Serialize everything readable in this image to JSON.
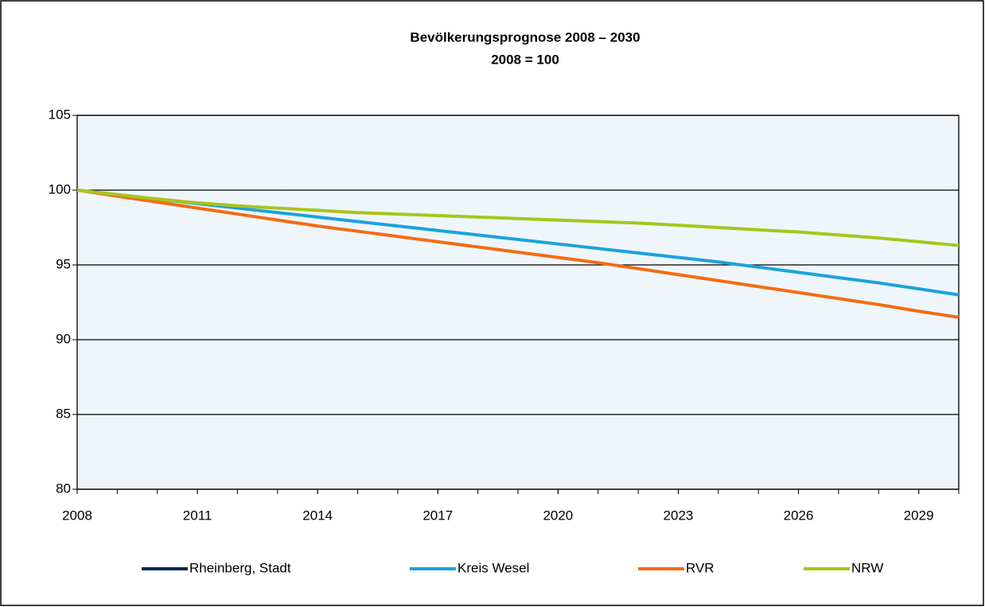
{
  "chart_data": {
    "type": "line",
    "title": "Bevölkerungsprognose 2008 – 2030",
    "subtitle": "2008 = 100",
    "x": [
      2008,
      2009,
      2010,
      2011,
      2012,
      2013,
      2014,
      2015,
      2016,
      2017,
      2018,
      2019,
      2020,
      2021,
      2022,
      2023,
      2024,
      2025,
      2026,
      2027,
      2028,
      2029,
      2030
    ],
    "xlim": [
      2008,
      2030
    ],
    "xticks": [
      2008,
      2011,
      2014,
      2017,
      2020,
      2023,
      2026,
      2029
    ],
    "ylim": [
      80,
      105
    ],
    "yticks": [
      80,
      85,
      90,
      95,
      100,
      105
    ],
    "grid": true,
    "legend": "bottom",
    "series": [
      {
        "name": "Rheinberg, Stadt",
        "color": "#0b2450",
        "values": [
          null,
          null,
          null,
          null,
          null,
          null,
          null,
          null,
          null,
          null,
          null,
          null,
          null,
          null,
          null,
          null,
          null,
          null,
          null,
          null,
          null,
          null,
          null
        ]
      },
      {
        "name": "Kreis Wesel",
        "color": "#1aa3dc",
        "values": [
          100,
          99.7,
          99.4,
          99.1,
          98.8,
          98.5,
          98.2,
          97.9,
          97.6,
          97.3,
          97.0,
          96.7,
          96.4,
          96.1,
          95.8,
          95.5,
          95.2,
          94.85,
          94.5,
          94.15,
          93.8,
          93.4,
          93.0
        ]
      },
      {
        "name": "RVR",
        "color": "#f46b14",
        "values": [
          100,
          99.6,
          99.2,
          98.8,
          98.4,
          98.0,
          97.6,
          97.25,
          96.9,
          96.55,
          96.2,
          95.85,
          95.5,
          95.15,
          94.75,
          94.35,
          93.95,
          93.55,
          93.15,
          92.75,
          92.35,
          91.9,
          91.5
        ]
      },
      {
        "name": "NRW",
        "color": "#a8c51a",
        "values": [
          100,
          99.7,
          99.4,
          99.15,
          98.95,
          98.8,
          98.65,
          98.5,
          98.4,
          98.3,
          98.2,
          98.1,
          98.0,
          97.9,
          97.8,
          97.65,
          97.5,
          97.35,
          97.2,
          97.0,
          96.8,
          96.55,
          96.3
        ]
      }
    ]
  }
}
